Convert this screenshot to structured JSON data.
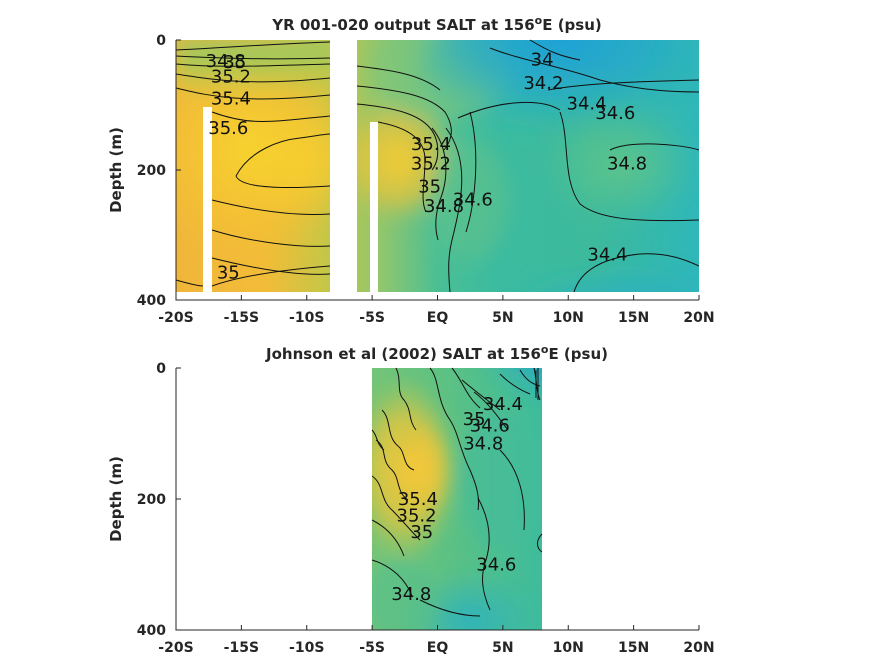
{
  "chart_data": [
    {
      "type": "heatmap",
      "title": "YR 001-020 output SALT at 156",
      "title_sup": "o",
      "title_tail": "E (psu)",
      "ylabel": "Depth (m)",
      "xlim": [
        -20,
        20
      ],
      "ylim": [
        400,
        0
      ],
      "x_ticks": [
        -20,
        -15,
        -10,
        -5,
        0,
        5,
        10,
        15,
        20
      ],
      "x_tick_labels": [
        "-20S",
        "-15S",
        "-10S",
        "-5S",
        "EQ",
        "5N",
        "10N",
        "15N",
        "20N"
      ],
      "y_ticks": [
        0,
        200,
        400
      ],
      "y_tick_labels": [
        "0",
        "200",
        "400"
      ],
      "data_extent": {
        "lat": [
          -20,
          20
        ],
        "depth": [
          0,
          385
        ]
      },
      "masked_columns": [
        {
          "lat": [
            -18,
            -17.3
          ],
          "depth_from": 105
        },
        {
          "lat": [
            -8,
            -6.2
          ],
          "depth_from": 0
        },
        {
          "lat": [
            -5.0,
            -4.4
          ],
          "depth_from": 127
        }
      ],
      "contour_labels": [
        {
          "text": "34.8",
          "lat": -16.2,
          "depth": 32
        },
        {
          "text": "35",
          "lat": -15.5,
          "depth": 34
        },
        {
          "text": "35.2",
          "lat": -15.8,
          "depth": 56
        },
        {
          "text": "35.4",
          "lat": -15.8,
          "depth": 90
        },
        {
          "text": "35.6",
          "lat": -16.0,
          "depth": 135
        },
        {
          "text": "35",
          "lat": -16.0,
          "depth": 358
        },
        {
          "text": "34",
          "lat": 8.0,
          "depth": 30
        },
        {
          "text": "34.2",
          "lat": 8.1,
          "depth": 66
        },
        {
          "text": "34.4",
          "lat": 11.4,
          "depth": 98
        },
        {
          "text": "34.6",
          "lat": 13.6,
          "depth": 112
        },
        {
          "text": "34.8",
          "lat": 14.5,
          "depth": 190
        },
        {
          "text": "34.4",
          "lat": 13.0,
          "depth": 330
        },
        {
          "text": "35.4",
          "lat": -0.5,
          "depth": 160
        },
        {
          "text": "35.2",
          "lat": -0.5,
          "depth": 190
        },
        {
          "text": "35",
          "lat": -0.6,
          "depth": 225
        },
        {
          "text": "34.8",
          "lat": 0.5,
          "depth": 255
        },
        {
          "text": "34.6",
          "lat": 2.7,
          "depth": 245
        }
      ]
    },
    {
      "type": "heatmap",
      "title": "Johnson et al (2002) SALT at 156",
      "title_sup": "o",
      "title_tail": "E (psu)",
      "ylabel": "Depth (m)",
      "xlim": [
        -20,
        20
      ],
      "ylim": [
        400,
        0
      ],
      "x_ticks": [
        -20,
        -15,
        -10,
        -5,
        0,
        5,
        10,
        15,
        20
      ],
      "x_tick_labels": [
        "-20S",
        "-15S",
        "-10S",
        "-5S",
        "EQ",
        "5N",
        "10N",
        "15N",
        "20N"
      ],
      "y_ticks": [
        0,
        200,
        400
      ],
      "y_tick_labels": [
        "0",
        "200",
        "400"
      ],
      "data_extent": {
        "lat": [
          -5,
          8
        ],
        "depth": [
          0,
          400
        ]
      },
      "contour_labels": [
        {
          "text": "34.4",
          "lat": 5.0,
          "depth": 55
        },
        {
          "text": "34.6",
          "lat": 4.0,
          "depth": 88
        },
        {
          "text": "34.8",
          "lat": 3.5,
          "depth": 115
        },
        {
          "text": "35",
          "lat": 2.8,
          "depth": 78
        },
        {
          "text": "35.4",
          "lat": -1.5,
          "depth": 200
        },
        {
          "text": "35.2",
          "lat": -1.6,
          "depth": 225
        },
        {
          "text": "35",
          "lat": -1.2,
          "depth": 250
        },
        {
          "text": "34.8",
          "lat": -2.0,
          "depth": 345
        },
        {
          "text": "34.6",
          "lat": 4.5,
          "depth": 300
        }
      ]
    }
  ]
}
